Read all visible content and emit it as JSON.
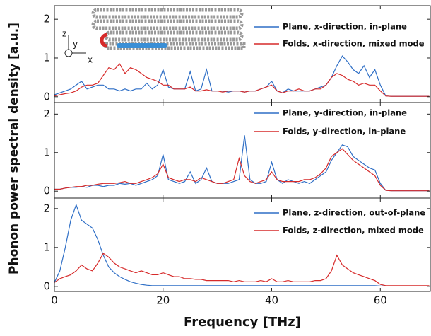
{
  "chart_data": [
    {
      "type": "line",
      "ylabel": "Phonon power spectral density [a.u.]",
      "annotations": [
        "z",
        "y",
        "x"
      ],
      "x": [
        0,
        1,
        2,
        3,
        4,
        5,
        6,
        7,
        8,
        9,
        10,
        11,
        12,
        13,
        14,
        15,
        16,
        17,
        18,
        19,
        20,
        21,
        22,
        23,
        24,
        25,
        26,
        27,
        28,
        29,
        30,
        31,
        32,
        33,
        34,
        35,
        36,
        37,
        38,
        39,
        40,
        41,
        42,
        43,
        44,
        45,
        46,
        47,
        48,
        49,
        50,
        51,
        52,
        53,
        54,
        55,
        56,
        57,
        58,
        59,
        60,
        61,
        62,
        63,
        64,
        65,
        66,
        67,
        68,
        69
      ],
      "xlim": [
        0,
        69.2
      ],
      "ylim": [
        -0.15,
        2.35
      ],
      "yticks": [
        0,
        1,
        2
      ],
      "series": [
        {
          "name": "Plane, x-direction, in-plane",
          "color": "#2f6fc6",
          "values": [
            0.05,
            0.1,
            0.15,
            0.2,
            0.3,
            0.4,
            0.2,
            0.25,
            0.3,
            0.3,
            0.2,
            0.2,
            0.15,
            0.2,
            0.15,
            0.2,
            0.2,
            0.35,
            0.2,
            0.3,
            0.7,
            0.25,
            0.2,
            0.2,
            0.2,
            0.65,
            0.15,
            0.2,
            0.7,
            0.15,
            0.15,
            0.15,
            0.12,
            0.15,
            0.15,
            0.12,
            0.15,
            0.15,
            0.2,
            0.25,
            0.4,
            0.15,
            0.1,
            0.2,
            0.15,
            0.15,
            0.15,
            0.15,
            0.2,
            0.25,
            0.3,
            0.5,
            0.8,
            1.05,
            0.9,
            0.7,
            0.6,
            0.8,
            0.5,
            0.7,
            0.3,
            0.02,
            0.01,
            0.01,
            0.01,
            0.01,
            0.01,
            0.01,
            0.01,
            0.01
          ]
        },
        {
          "name": "Folds, x-direction, mixed mode",
          "color": "#d62a2a",
          "values": [
            0.02,
            0.05,
            0.08,
            0.1,
            0.15,
            0.25,
            0.3,
            0.3,
            0.35,
            0.55,
            0.75,
            0.7,
            0.85,
            0.6,
            0.75,
            0.7,
            0.6,
            0.5,
            0.45,
            0.4,
            0.3,
            0.3,
            0.2,
            0.2,
            0.2,
            0.25,
            0.15,
            0.15,
            0.18,
            0.15,
            0.15,
            0.12,
            0.15,
            0.15,
            0.15,
            0.12,
            0.15,
            0.15,
            0.2,
            0.25,
            0.3,
            0.15,
            0.1,
            0.15,
            0.15,
            0.2,
            0.15,
            0.15,
            0.2,
            0.2,
            0.3,
            0.5,
            0.6,
            0.55,
            0.45,
            0.4,
            0.3,
            0.35,
            0.3,
            0.3,
            0.15,
            0.02,
            0.01,
            0.01,
            0.01,
            0.01,
            0.01,
            0.01,
            0.01,
            0.01
          ]
        }
      ]
    },
    {
      "type": "line",
      "x": [
        0,
        1,
        2,
        3,
        4,
        5,
        6,
        7,
        8,
        9,
        10,
        11,
        12,
        13,
        14,
        15,
        16,
        17,
        18,
        19,
        20,
        21,
        22,
        23,
        24,
        25,
        26,
        27,
        28,
        29,
        30,
        31,
        32,
        33,
        34,
        35,
        36,
        37,
        38,
        39,
        40,
        41,
        42,
        43,
        44,
        45,
        46,
        47,
        48,
        49,
        50,
        51,
        52,
        53,
        54,
        55,
        56,
        57,
        58,
        59,
        60,
        61,
        62,
        63,
        64,
        65,
        66,
        67,
        68,
        69
      ],
      "xlim": [
        0,
        69.2
      ],
      "ylim": [
        -0.18,
        2.3
      ],
      "yticks": [
        0,
        1,
        2
      ],
      "series": [
        {
          "name": "Plane, y-direction, in-plane",
          "color": "#2f6fc6",
          "values": [
            0.05,
            0.05,
            0.08,
            0.1,
            0.1,
            0.12,
            0.1,
            0.15,
            0.15,
            0.12,
            0.15,
            0.15,
            0.2,
            0.18,
            0.2,
            0.15,
            0.2,
            0.25,
            0.3,
            0.4,
            0.95,
            0.3,
            0.25,
            0.2,
            0.25,
            0.5,
            0.2,
            0.3,
            0.6,
            0.25,
            0.2,
            0.2,
            0.2,
            0.25,
            0.3,
            1.45,
            0.3,
            0.2,
            0.2,
            0.25,
            0.75,
            0.3,
            0.2,
            0.3,
            0.25,
            0.2,
            0.25,
            0.2,
            0.3,
            0.4,
            0.5,
            0.8,
            1.0,
            1.2,
            1.15,
            0.9,
            0.8,
            0.7,
            0.6,
            0.55,
            0.2,
            0.02,
            0.01,
            0.01,
            0.01,
            0.01,
            0.01,
            0.01,
            0.01,
            0.01
          ]
        },
        {
          "name": "Folds, y-direction, in-plane",
          "color": "#d62a2a",
          "values": [
            0.05,
            0.05,
            0.08,
            0.1,
            0.12,
            0.12,
            0.15,
            0.15,
            0.18,
            0.2,
            0.2,
            0.2,
            0.22,
            0.25,
            0.2,
            0.2,
            0.25,
            0.3,
            0.35,
            0.45,
            0.7,
            0.35,
            0.3,
            0.25,
            0.3,
            0.3,
            0.25,
            0.35,
            0.3,
            0.25,
            0.2,
            0.2,
            0.25,
            0.3,
            0.85,
            0.4,
            0.25,
            0.2,
            0.25,
            0.3,
            0.5,
            0.3,
            0.25,
            0.25,
            0.25,
            0.25,
            0.3,
            0.3,
            0.35,
            0.45,
            0.6,
            0.9,
            1.0,
            1.1,
            0.95,
            0.8,
            0.7,
            0.6,
            0.5,
            0.4,
            0.15,
            0.02,
            0.01,
            0.01,
            0.01,
            0.01,
            0.01,
            0.01,
            0.01,
            0.01
          ]
        }
      ]
    },
    {
      "type": "line",
      "xlabel": "Frequency [THz]",
      "x": [
        0,
        1,
        2,
        3,
        4,
        5,
        6,
        7,
        8,
        9,
        10,
        11,
        12,
        13,
        14,
        15,
        16,
        17,
        18,
        19,
        20,
        21,
        22,
        23,
        24,
        25,
        26,
        27,
        28,
        29,
        30,
        31,
        32,
        33,
        34,
        35,
        36,
        37,
        38,
        39,
        40,
        41,
        42,
        43,
        44,
        45,
        46,
        47,
        48,
        49,
        50,
        51,
        52,
        53,
        54,
        55,
        56,
        57,
        58,
        59,
        60,
        61,
        62,
        63,
        64,
        65,
        66,
        67,
        68,
        69
      ],
      "xlim": [
        0,
        69.2
      ],
      "ylim": [
        -0.13,
        2.27
      ],
      "yticks": [
        0,
        1,
        2
      ],
      "xticks": [
        0,
        20,
        40,
        60
      ],
      "series": [
        {
          "name": "Plane, z-direction, out-of-plane",
          "color": "#2f6fc6",
          "values": [
            0.1,
            0.4,
            1.0,
            1.7,
            2.1,
            1.7,
            1.6,
            1.5,
            1.2,
            0.8,
            0.5,
            0.35,
            0.25,
            0.18,
            0.12,
            0.08,
            0.05,
            0.03,
            0.02,
            0.02,
            0.02,
            0.02,
            0.02,
            0.02,
            0.02,
            0.02,
            0.02,
            0.02,
            0.02,
            0.02,
            0.02,
            0.02,
            0.02,
            0.02,
            0.02,
            0.02,
            0.02,
            0.02,
            0.02,
            0.02,
            0.02,
            0.02,
            0.02,
            0.02,
            0.02,
            0.02,
            0.02,
            0.02,
            0.02,
            0.02,
            0.02,
            0.02,
            0.02,
            0.02,
            0.02,
            0.02,
            0.02,
            0.02,
            0.02,
            0.02,
            0.01,
            0.01,
            0.01,
            0.01,
            0.01,
            0.01,
            0.01,
            0.01,
            0.01,
            0.01
          ]
        },
        {
          "name": "Folds, z-direction, mixed mode",
          "color": "#d62a2a",
          "values": [
            0.1,
            0.2,
            0.25,
            0.3,
            0.4,
            0.55,
            0.45,
            0.4,
            0.6,
            0.85,
            0.75,
            0.6,
            0.5,
            0.45,
            0.4,
            0.35,
            0.4,
            0.35,
            0.3,
            0.3,
            0.35,
            0.3,
            0.25,
            0.25,
            0.2,
            0.2,
            0.18,
            0.18,
            0.15,
            0.15,
            0.15,
            0.15,
            0.15,
            0.12,
            0.15,
            0.12,
            0.12,
            0.12,
            0.15,
            0.12,
            0.2,
            0.12,
            0.12,
            0.15,
            0.12,
            0.12,
            0.12,
            0.12,
            0.15,
            0.15,
            0.2,
            0.4,
            0.8,
            0.55,
            0.45,
            0.35,
            0.3,
            0.25,
            0.2,
            0.15,
            0.05,
            0.02,
            0.02,
            0.02,
            0.02,
            0.02,
            0.02,
            0.02,
            0.02,
            0.02
          ]
        }
      ]
    }
  ]
}
